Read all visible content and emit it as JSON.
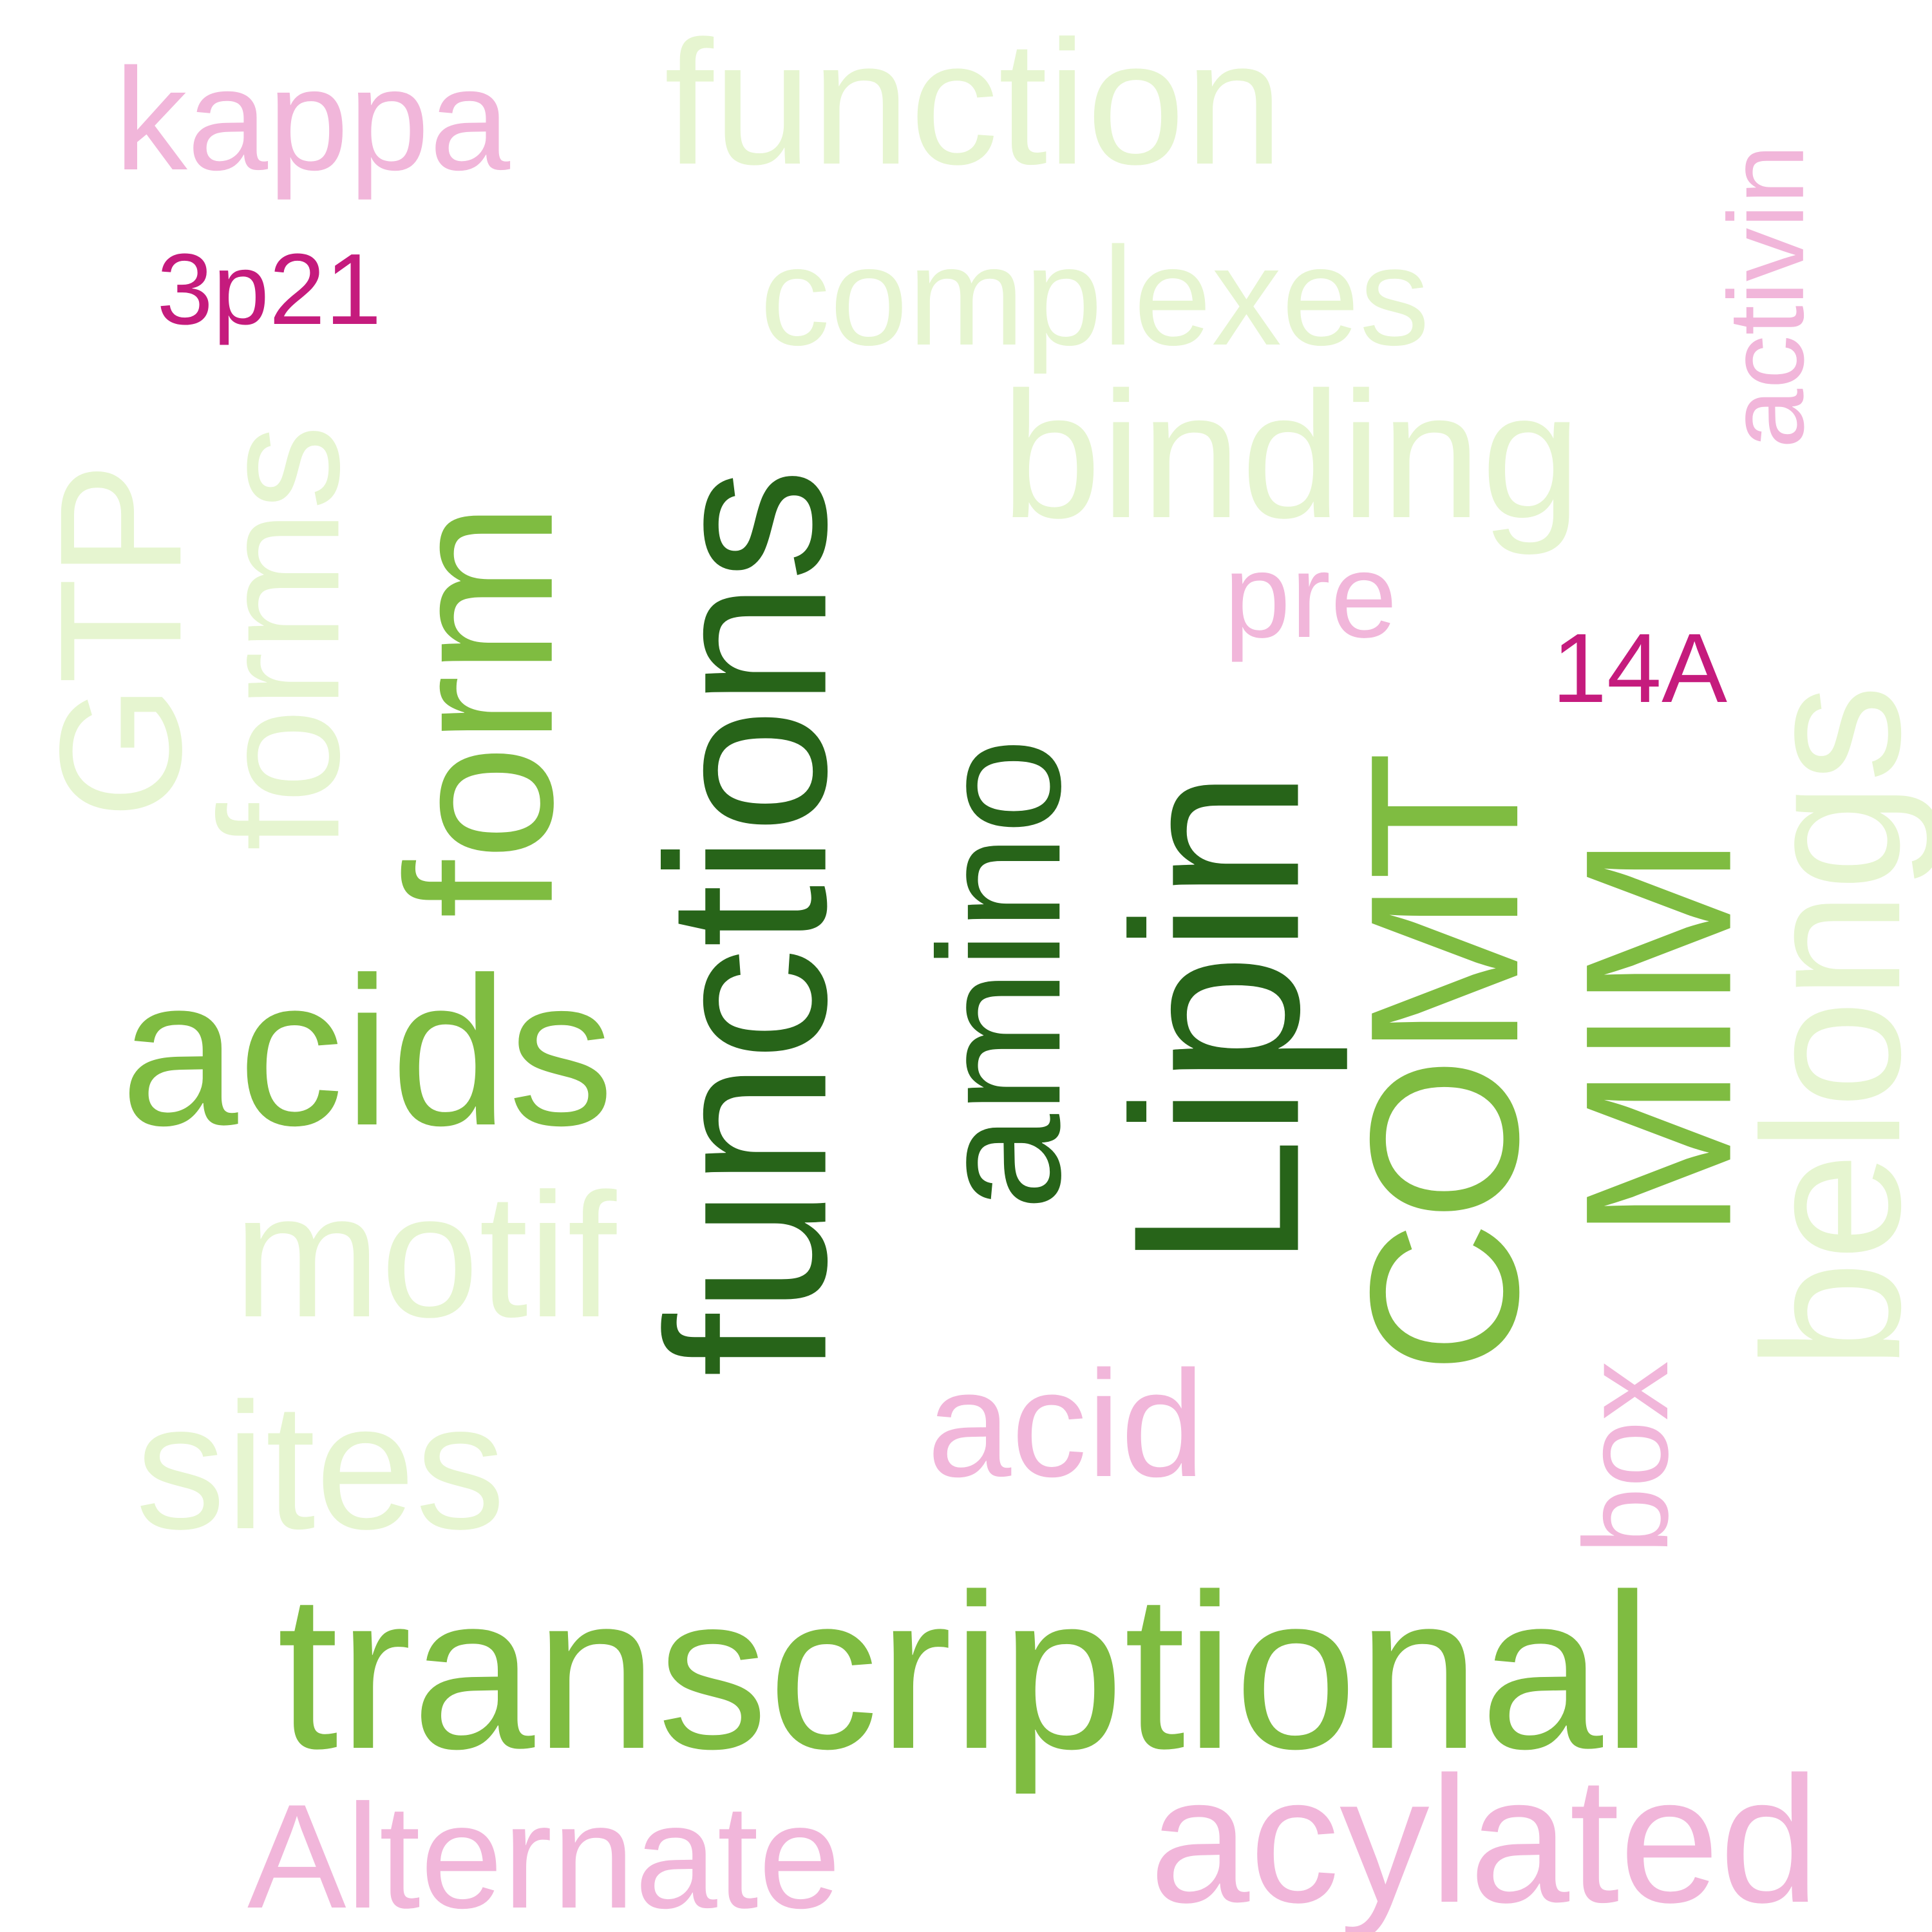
{
  "words": [
    {
      "text": "kappa",
      "color": "#f1b6da"
    },
    {
      "text": "function",
      "color": "#e6f5d0"
    },
    {
      "text": "complexes",
      "color": "#e6f5d0"
    },
    {
      "text": "activin",
      "color": "#f1b6da"
    },
    {
      "text": "3p21",
      "color": "#c51b7d"
    },
    {
      "text": "forms",
      "color": "#e6f5d0"
    },
    {
      "text": "GTP",
      "color": "#e6f5d0"
    },
    {
      "text": "form",
      "color": "#7fbc41"
    },
    {
      "text": "functions",
      "color": "#276419"
    },
    {
      "text": "binding",
      "color": "#e6f5d0"
    },
    {
      "text": "pre",
      "color": "#f1b6da"
    },
    {
      "text": "14A",
      "color": "#c51b7d"
    },
    {
      "text": "belongs",
      "color": "#e6f5d0"
    },
    {
      "text": "amino",
      "color": "#276419"
    },
    {
      "text": "Lipin",
      "color": "#276419"
    },
    {
      "text": "COMT",
      "color": "#7fbc41"
    },
    {
      "text": "MIM",
      "color": "#7fbc41"
    },
    {
      "text": "acids",
      "color": "#7fbc41"
    },
    {
      "text": "motif",
      "color": "#e6f5d0"
    },
    {
      "text": "box",
      "color": "#f1b6da"
    },
    {
      "text": "acid",
      "color": "#f1b6da"
    },
    {
      "text": "sites",
      "color": "#e6f5d0"
    },
    {
      "text": "transcriptional",
      "color": "#7fbc41"
    },
    {
      "text": "Alternate",
      "color": "#f1b6da"
    },
    {
      "text": "acylated",
      "color": "#f1b6da"
    }
  ]
}
